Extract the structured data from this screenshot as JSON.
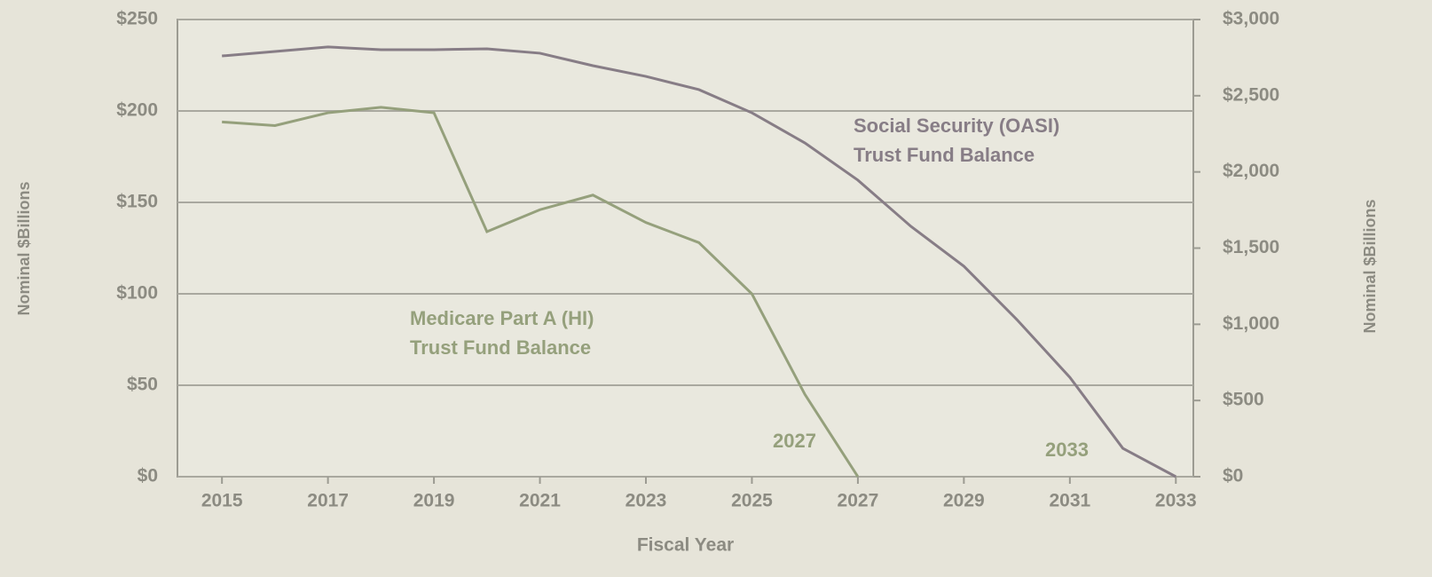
{
  "chart_data": {
    "type": "line",
    "x": [
      2015,
      2016,
      2017,
      2018,
      2019,
      2020,
      2021,
      2022,
      2023,
      2024,
      2025,
      2026,
      2027,
      2028,
      2029,
      2030,
      2031,
      2032,
      2033
    ],
    "xlim": [
      2014.16,
      2033.33
    ],
    "xticks": [
      2015,
      2017,
      2019,
      2021,
      2023,
      2025,
      2027,
      2029,
      2031,
      2033
    ],
    "xlabel": "Fiscal Year",
    "ylabel": "Nominal $Billions",
    "y2label": "Nominal $Billions",
    "ylim": [
      0,
      250
    ],
    "yticks": [
      {
        "value": 0,
        "label": "$0"
      },
      {
        "value": 50,
        "label": "$50"
      },
      {
        "value": 100,
        "label": "$100"
      },
      {
        "value": 150,
        "label": "$150"
      },
      {
        "value": 200,
        "label": "$200"
      },
      {
        "value": 250,
        "label": "$250"
      }
    ],
    "y2lim": [
      0,
      3000
    ],
    "y2ticks": [
      {
        "value": 0,
        "label": "$0"
      },
      {
        "value": 500,
        "label": "$500"
      },
      {
        "value": 1000,
        "label": "$1,000"
      },
      {
        "value": 1500,
        "label": "$1,500"
      },
      {
        "value": 2000,
        "label": "$2,000"
      },
      {
        "value": 2500,
        "label": "$2,500"
      },
      {
        "value": 3000,
        "label": "$3,000"
      }
    ],
    "grid": true,
    "series": [
      {
        "color": "#95a07c",
        "axis": "y",
        "values": [
          194,
          192,
          199,
          202,
          199,
          134,
          146,
          154,
          139,
          128,
          100,
          45,
          0,
          null,
          null,
          null,
          null,
          null,
          null
        ]
      },
      {
        "color": "#877d86",
        "axis": "y2",
        "values": [
          2761,
          2790,
          2820,
          2802,
          2802,
          2808,
          2779,
          2697,
          2627,
          2540,
          2388,
          2190,
          1946,
          1643,
          1381,
          1031,
          652,
          186,
          0
        ]
      }
    ],
    "annotations": [
      {
        "text": [
          "Social Security (OASI)",
          "Trust Fund Balance"
        ]
      },
      {
        "text": [
          "Medicare Part A (HI)",
          "Trust Fund Balance"
        ]
      },
      {
        "text": [
          "2027"
        ]
      },
      {
        "text": [
          "2033"
        ]
      }
    ]
  }
}
